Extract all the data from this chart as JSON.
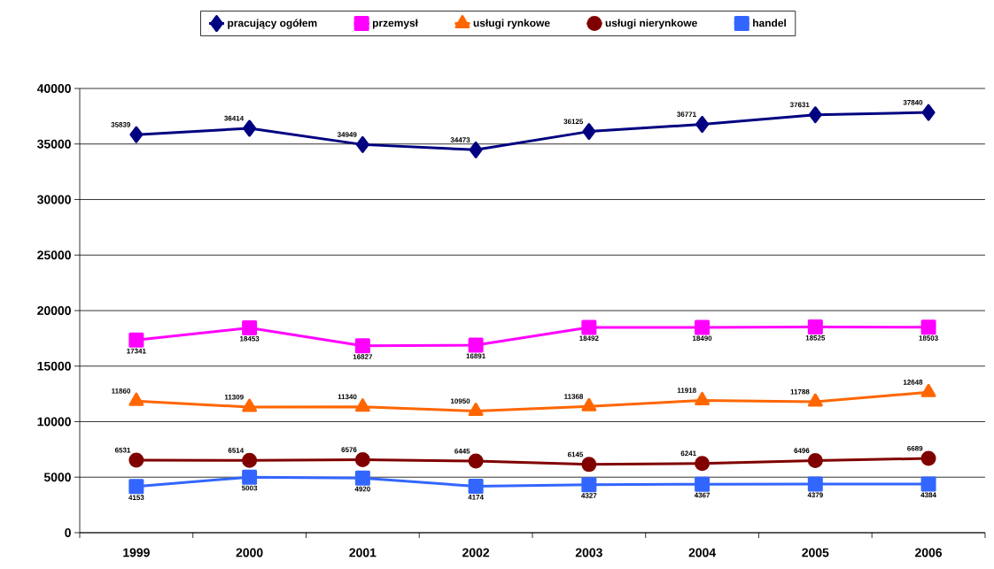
{
  "chart_data": {
    "type": "line",
    "categories": [
      "1999",
      "2000",
      "2001",
      "2002",
      "2003",
      "2004",
      "2005",
      "2006"
    ],
    "series": [
      {
        "name": "pracujący ogółem",
        "color": "#000080",
        "marker": "diamond",
        "values": [
          35839,
          36414,
          34949,
          34473,
          36125,
          36771,
          37631,
          37840
        ]
      },
      {
        "name": "przemysł",
        "color": "#ff00ff",
        "marker": "square",
        "values": [
          17341,
          18453,
          16827,
          16891,
          18492,
          18490,
          18525,
          18503
        ]
      },
      {
        "name": "usługi rynkowe",
        "color": "#ff6600",
        "marker": "triangle",
        "values": [
          11860,
          11309,
          11340,
          10950,
          11368,
          11918,
          11788,
          12648
        ]
      },
      {
        "name": "usługi nierynkowe",
        "color": "#800000",
        "marker": "circle",
        "values": [
          6531,
          6514,
          6576,
          6445,
          6145,
          6241,
          6496,
          6689
        ]
      },
      {
        "name": "handel",
        "color": "#3366ff",
        "marker": "square",
        "values": [
          4153,
          5003,
          4920,
          4174,
          4327,
          4367,
          4379,
          4384
        ]
      }
    ],
    "ylim": [
      0,
      40000
    ],
    "yticks": [
      0,
      5000,
      10000,
      15000,
      20000,
      25000,
      30000,
      35000,
      40000
    ],
    "grid": "y",
    "legend": "top",
    "data_labels": true,
    "line_style": "solid"
  }
}
